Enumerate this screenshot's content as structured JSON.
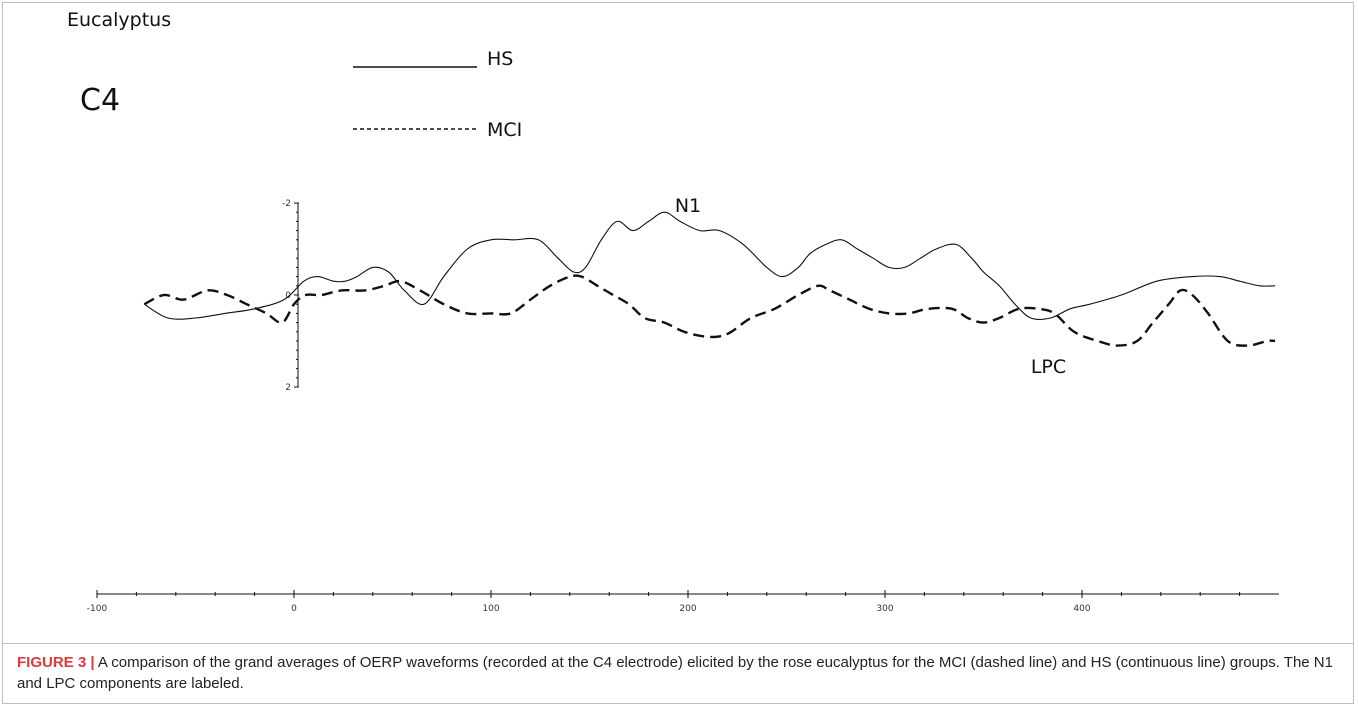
{
  "chart_data": {
    "type": "line",
    "title": "Eucalyptus",
    "electrode_label": "C4",
    "x_ticks": [
      "-100",
      "0",
      "100",
      "200",
      "300",
      "400"
    ],
    "y_ticks": [
      "-2",
      "0",
      "2"
    ],
    "xlim": [
      -100,
      500
    ],
    "ylim": [
      -2,
      2
    ],
    "y_inverted": true,
    "legend": [
      {
        "label": "HS",
        "style": "solid"
      },
      {
        "label": "MCI",
        "style": "dashed"
      }
    ],
    "annotations": [
      {
        "text": "N1",
        "x": 200,
        "y": -1.8
      },
      {
        "text": "LPC",
        "x": 383,
        "y": 1.7
      }
    ],
    "series": [
      {
        "name": "HS",
        "style": "solid",
        "x": [
          -76,
          -64,
          -50,
          -35,
          -20,
          -5,
          5,
          12,
          20,
          26,
          32,
          40,
          48,
          56,
          66,
          76,
          88,
          100,
          112,
          124,
          134,
          142,
          148,
          156,
          164,
          172,
          180,
          188,
          196,
          206,
          216,
          228,
          240,
          248,
          256,
          262,
          270,
          278,
          286,
          294,
          302,
          310,
          318,
          326,
          336,
          344,
          350,
          358,
          366,
          374,
          384,
          394,
          404,
          420,
          438,
          456,
          470,
          480,
          490,
          498
        ],
        "y": [
          0.2,
          0.5,
          0.5,
          0.4,
          0.3,
          0.1,
          -0.3,
          -0.4,
          -0.3,
          -0.3,
          -0.4,
          -0.6,
          -0.5,
          -0.1,
          0.2,
          -0.4,
          -1.0,
          -1.2,
          -1.2,
          -1.2,
          -0.8,
          -0.5,
          -0.6,
          -1.2,
          -1.6,
          -1.4,
          -1.6,
          -1.8,
          -1.6,
          -1.4,
          -1.4,
          -1.1,
          -0.6,
          -0.4,
          -0.6,
          -0.9,
          -1.1,
          -1.2,
          -1.0,
          -0.8,
          -0.6,
          -0.6,
          -0.8,
          -1.0,
          -1.1,
          -0.8,
          -0.5,
          -0.2,
          0.2,
          0.5,
          0.5,
          0.3,
          0.2,
          0.0,
          -0.3,
          -0.4,
          -0.4,
          -0.3,
          -0.2,
          -0.2
        ]
      },
      {
        "name": "MCI",
        "style": "dashed",
        "x": [
          -76,
          -66,
          -56,
          -44,
          -34,
          -24,
          -14,
          -6,
          0,
          6,
          14,
          24,
          36,
          46,
          54,
          64,
          76,
          88,
          100,
          110,
          120,
          130,
          140,
          146,
          154,
          162,
          170,
          178,
          188,
          198,
          208,
          216,
          222,
          232,
          244,
          256,
          266,
          272,
          282,
          292,
          302,
          312,
          322,
          334,
          342,
          350,
          358,
          368,
          378,
          386,
          396,
          408,
          418,
          428,
          436,
          444,
          450,
          456,
          464,
          474,
          484,
          494,
          498
        ],
        "y": [
          0.2,
          0.0,
          0.1,
          -0.1,
          0.0,
          0.2,
          0.4,
          0.6,
          0.2,
          0.0,
          0.0,
          -0.1,
          -0.1,
          -0.2,
          -0.3,
          -0.1,
          0.2,
          0.4,
          0.4,
          0.4,
          0.1,
          -0.2,
          -0.4,
          -0.4,
          -0.2,
          0.0,
          0.2,
          0.5,
          0.6,
          0.8,
          0.9,
          0.9,
          0.8,
          0.5,
          0.3,
          0.0,
          -0.2,
          -0.1,
          0.1,
          0.3,
          0.4,
          0.4,
          0.3,
          0.3,
          0.5,
          0.6,
          0.5,
          0.3,
          0.3,
          0.4,
          0.8,
          1.0,
          1.1,
          1.0,
          0.6,
          0.2,
          -0.1,
          0.0,
          0.4,
          1.0,
          1.1,
          1.0,
          1.0
        ]
      }
    ]
  },
  "caption": {
    "label": "FIGURE 3 |",
    "text": " A comparison of the grand averages of OERP waveforms (recorded at the C4 electrode) elicited by the rose eucalyptus for the MCI (dashed line) and HS (continuous line) groups. The N1 and LPC components are labeled."
  }
}
